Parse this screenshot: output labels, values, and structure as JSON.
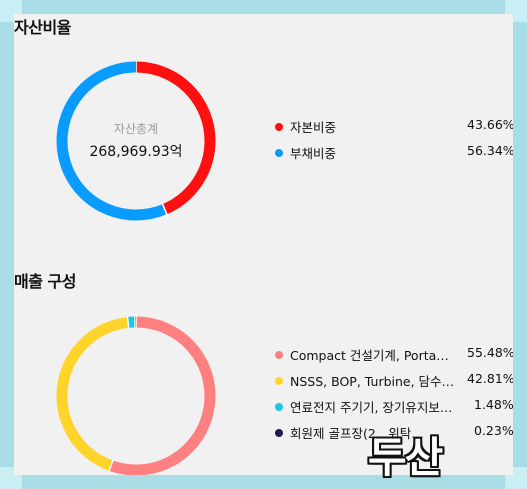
{
  "asset_section": {
    "title": "자산비율",
    "center_caption": "자산총계",
    "center_value": "268,969.93억",
    "chart_data": {
      "type": "pie",
      "categories": [
        "자본비중",
        "부채비중"
      ],
      "values": [
        43.66,
        56.34
      ],
      "colors": [
        "#ff1010",
        "#0a9bff"
      ]
    },
    "legend": [
      {
        "label": "자본비중",
        "value": "43.66%",
        "color": "#ff1010"
      },
      {
        "label": "부채비중",
        "value": "56.34%",
        "color": "#0a9bff"
      }
    ]
  },
  "sales_section": {
    "title": "매출 구성",
    "chart_data": {
      "type": "pie",
      "categories": [
        "Compact 건설기계, Porta…",
        "NSSS, BOP, Turbine, 담수…",
        "연료전지 주기기, 장기유지보…",
        "회원제 골프장(2…위탁…"
      ],
      "values": [
        55.48,
        42.81,
        1.48,
        0.23
      ],
      "colors": [
        "#ff8080",
        "#ffd42a",
        "#17c8e8",
        "#1e1a4a"
      ]
    },
    "legend": [
      {
        "label": "Compact 건설기계, Porta…",
        "value": "55.48%",
        "color": "#ff8080"
      },
      {
        "label": "NSSS, BOP, Turbine, 담수…",
        "value": "42.81%",
        "color": "#ffd42a"
      },
      {
        "label": "연료전지 주기기, 장기유지보…",
        "value": "1.48%",
        "color": "#17c8e8"
      },
      {
        "label": "회원제 골프장(2…위탁…",
        "value": "0.23%",
        "color": "#1e1a4a"
      }
    ]
  },
  "watermark": "두산"
}
